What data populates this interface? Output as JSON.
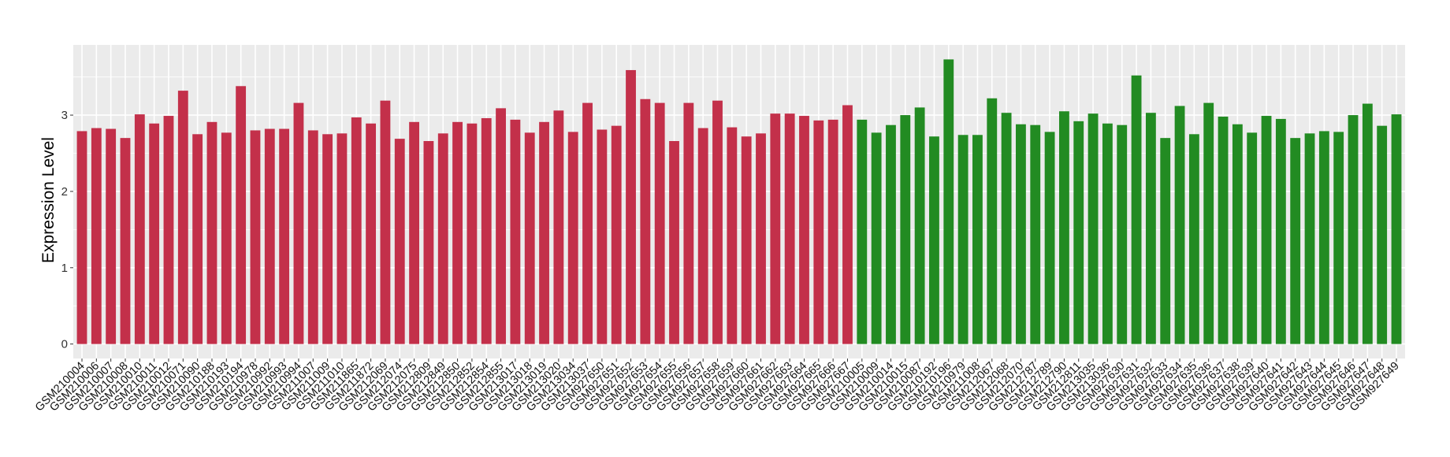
{
  "chart_data": {
    "type": "bar",
    "title": "",
    "xlabel": "",
    "ylabel": "Expression Level",
    "ylim": [
      -0.19,
      3.92
    ],
    "yticks": [
      0,
      1,
      2,
      3
    ],
    "grid": true,
    "legend": "none",
    "colors": {
      "group1": "#C3304A",
      "group2": "#228B22",
      "panel": "#EBEBEB",
      "grid": "#FFFFFF"
    },
    "categories": [
      "GSM210004",
      "GSM210006",
      "GSM210007",
      "GSM210008",
      "GSM210010",
      "GSM210011",
      "GSM210012",
      "GSM210071",
      "GSM210090",
      "GSM210188",
      "GSM210193",
      "GSM210194",
      "GSM210978",
      "GSM210992",
      "GSM210993",
      "GSM210994",
      "GSM211007",
      "GSM211009",
      "GSM211010",
      "GSM211865",
      "GSM211872",
      "GSM212069",
      "GSM212074",
      "GSM212075",
      "GSM212809",
      "GSM212849",
      "GSM212850",
      "GSM212852",
      "GSM212854",
      "GSM212855",
      "GSM213017",
      "GSM213018",
      "GSM213019",
      "GSM213020",
      "GSM213034",
      "GSM213037",
      "GSM927650",
      "GSM927651",
      "GSM927652",
      "GSM927653",
      "GSM927654",
      "GSM927655",
      "GSM927656",
      "GSM927657",
      "GSM927658",
      "GSM927659",
      "GSM927660",
      "GSM927661",
      "GSM927662",
      "GSM927663",
      "GSM927664",
      "GSM927665",
      "GSM927666",
      "GSM927667",
      "GSM210005",
      "GSM210009",
      "GSM210014",
      "GSM210015",
      "GSM210087",
      "GSM210192",
      "GSM210196",
      "GSM210979",
      "GSM211008",
      "GSM212067",
      "GSM212068",
      "GSM212070",
      "GSM212787",
      "GSM212789",
      "GSM212790",
      "GSM212811",
      "GSM213035",
      "GSM213036",
      "GSM927630",
      "GSM927631",
      "GSM927632",
      "GSM927633",
      "GSM927634",
      "GSM927635",
      "GSM927636",
      "GSM927637",
      "GSM927638",
      "GSM927639",
      "GSM927640",
      "GSM927641",
      "GSM927642",
      "GSM927643",
      "GSM927644",
      "GSM927645",
      "GSM927646",
      "GSM927647",
      "GSM927648",
      "GSM927649"
    ],
    "values": [
      2.79,
      2.83,
      2.82,
      2.7,
      3.01,
      2.89,
      2.99,
      3.32,
      2.75,
      2.91,
      2.77,
      3.38,
      2.8,
      2.82,
      2.82,
      3.16,
      2.8,
      2.75,
      2.76,
      2.97,
      2.89,
      3.19,
      2.69,
      2.91,
      2.66,
      2.76,
      2.91,
      2.89,
      2.96,
      3.09,
      2.94,
      2.77,
      2.91,
      3.06,
      2.78,
      3.16,
      2.81,
      2.86,
      3.59,
      3.21,
      3.16,
      2.66,
      3.16,
      2.83,
      3.19,
      2.84,
      2.72,
      2.76,
      3.02,
      3.02,
      2.99,
      2.93,
      2.94,
      3.13,
      2.94,
      2.77,
      2.87,
      3.0,
      3.1,
      2.72,
      3.73,
      2.74,
      2.74,
      3.22,
      3.03,
      2.88,
      2.87,
      2.78,
      3.05,
      2.92,
      3.02,
      2.89,
      2.87,
      3.52,
      3.03,
      2.7,
      3.12,
      2.75,
      3.16,
      2.98,
      2.88,
      2.77,
      2.99,
      2.95,
      2.7,
      2.76,
      2.79,
      2.78,
      3.0,
      3.15,
      2.86,
      3.01
    ],
    "groups": [
      "group1",
      "group1",
      "group1",
      "group1",
      "group1",
      "group1",
      "group1",
      "group1",
      "group1",
      "group1",
      "group1",
      "group1",
      "group1",
      "group1",
      "group1",
      "group1",
      "group1",
      "group1",
      "group1",
      "group1",
      "group1",
      "group1",
      "group1",
      "group1",
      "group1",
      "group1",
      "group1",
      "group1",
      "group1",
      "group1",
      "group1",
      "group1",
      "group1",
      "group1",
      "group1",
      "group1",
      "group1",
      "group1",
      "group1",
      "group1",
      "group1",
      "group1",
      "group1",
      "group1",
      "group1",
      "group1",
      "group1",
      "group1",
      "group1",
      "group1",
      "group1",
      "group1",
      "group1",
      "group1",
      "group2",
      "group2",
      "group2",
      "group2",
      "group2",
      "group2",
      "group2",
      "group2",
      "group2",
      "group2",
      "group2",
      "group2",
      "group2",
      "group2",
      "group2",
      "group2",
      "group2",
      "group2",
      "group2",
      "group2",
      "group2",
      "group2",
      "group2",
      "group2",
      "group2",
      "group2",
      "group2",
      "group2",
      "group2",
      "group2",
      "group2",
      "group2",
      "group2",
      "group2",
      "group2",
      "group2",
      "group2",
      "group2"
    ]
  }
}
